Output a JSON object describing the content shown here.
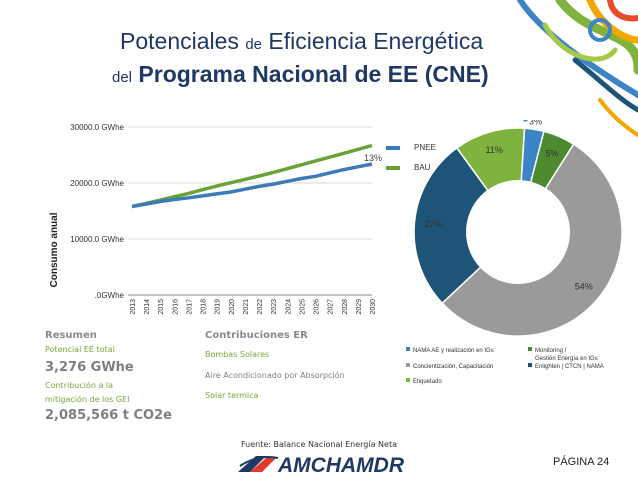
{
  "header": {
    "title_small_1": "Potenciales",
    "title_small_2": "de",
    "title_big_1": "Eficiencia Energética",
    "title_small_3": "del",
    "title_big_2": "Programa Nacional de EE (CNE)"
  },
  "colors": {
    "pnee": "#3d7ab8",
    "bau": "#6aa23a",
    "pie_slices": [
      "#3c84c5",
      "#4d8a2f",
      "#9a9a9a",
      "#1d5478",
      "#7fb33e"
    ],
    "green_text": "#7aa63a",
    "title_navy": "#1f3864"
  },
  "chart_data": [
    {
      "type": "line",
      "ylabel": "Consumo anual",
      "y_ticks": [
        ".0GWhe",
        "10000.0 GWhe",
        "20000.0 GWhe",
        "30000.0 GWhe"
      ],
      "ylim": [
        0,
        30000
      ],
      "x": [
        "2013",
        "2014",
        "2015",
        "2016",
        "2017",
        "2018",
        "2019",
        "2020",
        "2021",
        "2022",
        "2023",
        "2024",
        "2025",
        "2026",
        "2027",
        "2028",
        "2029",
        "2030"
      ],
      "series": [
        {
          "name": "PNEE",
          "values": [
            15800,
            16250,
            16700,
            17050,
            17350,
            17700,
            18050,
            18400,
            18900,
            19400,
            19800,
            20300,
            20800,
            21200,
            21800,
            22400,
            22900,
            23400
          ]
        },
        {
          "name": "BAU",
          "values": [
            15800,
            16350,
            16950,
            17550,
            18150,
            18800,
            19450,
            20050,
            20650,
            21250,
            21900,
            22550,
            23250,
            23950,
            24600,
            25300,
            26000,
            26700
          ]
        }
      ],
      "annotation": "13%",
      "grid": "horizontal",
      "legend_position": "right"
    },
    {
      "type": "pie",
      "style": "donut",
      "labels": [
        "NAMA AE y realización en IGs",
        "Monitoring / Gestión Energía en IGs",
        "Concientización, Capacitación",
        "Enlighten | CTCN | NAMA",
        "Etiquetado"
      ],
      "values": [
        3,
        5,
        54,
        27,
        11
      ],
      "value_labels": [
        "3%",
        "5%",
        "54%",
        "27%",
        "11%"
      ],
      "legend_position": "bottom"
    }
  ],
  "legend": {
    "pnee": "PNEE",
    "bau": "BAU"
  },
  "pie_legend": {
    "item1": "NAMA AE y realización en IGs",
    "item2_line1": "Monitoring /",
    "item2_line2": "Gestión Energía en IGs",
    "item3": "Concientización, Capacitación",
    "item4": "Enlighten | CTCN | NAMA",
    "item5": "Etiquetado"
  },
  "summary": {
    "heading": "Resumen",
    "potential_label": "Potencial EE total",
    "potential_value": "3,276 GWhe",
    "mitigation_label_1": "Contribución a la",
    "mitigation_label_2": "mitigación de los GEI",
    "mitigation_value": "2,085,566 t CO2e"
  },
  "contributions": {
    "heading": "Contribuciones ER",
    "item1": "Bombas Solares",
    "item2": "Aire Acondicionado por Absorpción",
    "item3": "Solar termica"
  },
  "footer": {
    "source": "Fuente: Balance Nacional Energía Neta",
    "logo": "AMCHAMDR",
    "page": "PÁGINA 24"
  }
}
